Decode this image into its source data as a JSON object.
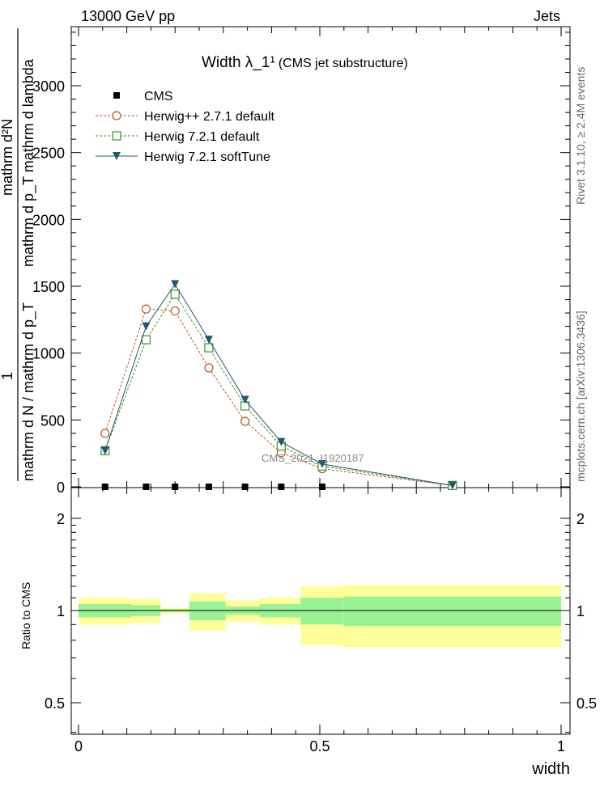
{
  "header": {
    "left": "13000 GeV pp",
    "right": "Jets"
  },
  "side_labels": {
    "rivet": "Rivet 3.1.10, ≥ 2.4M events",
    "mcplots": "mcplots.cern.ch [arXiv:1306.3436]"
  },
  "chart_data": [
    {
      "type": "line",
      "title": "Width λ_1¹",
      "subtitle": "(CMS jet substructure)",
      "watermark": "CMS_2021_I1920187",
      "ylabel": "1 / mathrm d N / mathrm d p_T   mathrm d²N / mathrm d p_T mathrm d lambda",
      "ylabel_parts": {
        "numerator_left": "1",
        "denominator_left": "mathrm d N / mathrm d p_T",
        "numerator_right": "mathrm d²N",
        "denominator_right": "mathrm d p_T mathrm d lambda"
      },
      "xlim": [
        0,
        1
      ],
      "ylim": [
        0,
        3450
      ],
      "y_ticks": [
        0,
        500,
        1000,
        1500,
        2000,
        2500,
        3000
      ],
      "y_tick_labels": [
        "0",
        "500",
        "1000",
        "1500",
        "2000",
        "2500",
        "3000"
      ],
      "legend_position": "top-left",
      "series": [
        {
          "name": "CMS",
          "color": "#000000",
          "marker": "filled-square",
          "x": [
            0.055,
            0.14,
            0.2,
            0.27,
            0.345,
            0.42,
            0.505,
            0.775
          ],
          "y": [
            0,
            0,
            0,
            0,
            0,
            0,
            0,
            0
          ]
        },
        {
          "name": "Herwig++ 2.7.1 default",
          "color": "#b35a1f",
          "marker": "open-circle",
          "dash": true,
          "x": [
            0.055,
            0.14,
            0.2,
            0.27,
            0.345,
            0.42,
            0.505,
            0.775
          ],
          "y": [
            400,
            1330,
            1315,
            890,
            490,
            255,
            135,
            10
          ]
        },
        {
          "name": "Herwig 7.2.1 default",
          "color": "#3f8f25",
          "marker": "open-square",
          "dash": true,
          "x": [
            0.055,
            0.14,
            0.2,
            0.27,
            0.345,
            0.42,
            0.505,
            0.775
          ],
          "y": [
            270,
            1100,
            1440,
            1040,
            605,
            305,
            155,
            10
          ]
        },
        {
          "name": "Herwig 7.2.1 softTune",
          "color": "#1f5870",
          "marker": "filled-triangle-down",
          "dash": false,
          "x": [
            0.055,
            0.14,
            0.2,
            0.27,
            0.345,
            0.42,
            0.505,
            0.775
          ],
          "y": [
            270,
            1200,
            1515,
            1100,
            650,
            335,
            170,
            10
          ]
        }
      ]
    },
    {
      "type": "area",
      "ylabel": "Ratio to CMS",
      "xlabel": "width",
      "xlim": [
        0,
        1
      ],
      "ylim": [
        0.33,
        2.27
      ],
      "y_ticks": [
        0.5,
        1,
        2
      ],
      "y_tick_labels": [
        "0.5",
        "1",
        "2"
      ],
      "x_ticks": [
        0,
        0.5,
        1
      ],
      "x_tick_labels": [
        "0",
        "0.5",
        "1"
      ],
      "bins": [
        {
          "x0": 0.0,
          "x1": 0.11,
          "stat": [
            0.95,
            1.05
          ],
          "total": [
            0.9,
            1.1
          ]
        },
        {
          "x0": 0.11,
          "x1": 0.17,
          "stat": [
            0.96,
            1.04
          ],
          "total": [
            0.91,
            1.09
          ]
        },
        {
          "x0": 0.17,
          "x1": 0.23,
          "stat": [
            0.99,
            1.01
          ],
          "total": [
            0.98,
            1.02
          ]
        },
        {
          "x0": 0.23,
          "x1": 0.305,
          "stat": [
            0.93,
            1.07
          ],
          "total": [
            0.86,
            1.14
          ]
        },
        {
          "x0": 0.305,
          "x1": 0.375,
          "stat": [
            0.97,
            1.03
          ],
          "total": [
            0.92,
            1.08
          ]
        },
        {
          "x0": 0.375,
          "x1": 0.46,
          "stat": [
            0.95,
            1.05
          ],
          "total": [
            0.9,
            1.1
          ]
        },
        {
          "x0": 0.46,
          "x1": 0.55,
          "stat": [
            0.9,
            1.1
          ],
          "total": [
            0.77,
            1.2
          ]
        },
        {
          "x0": 0.55,
          "x1": 1.0,
          "stat": [
            0.89,
            1.11
          ],
          "total": [
            0.76,
            1.21
          ]
        }
      ],
      "reference_line": 1
    }
  ],
  "colors": {
    "band_stat": "#99f294",
    "band_total": "#ffff99",
    "axis": "#000000",
    "side_text": "#666666",
    "watermark": "#888888"
  }
}
